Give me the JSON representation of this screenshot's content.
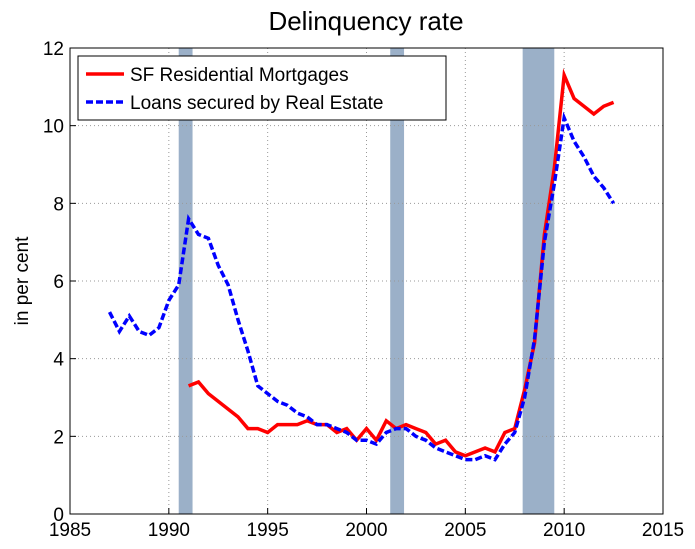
{
  "chart_data": {
    "type": "line",
    "title": "Delinquency rate",
    "y_label": "in per cent",
    "xlim": [
      1985,
      2015
    ],
    "xticks": [
      1985,
      1990,
      1995,
      2000,
      2005,
      2010,
      2015
    ],
    "ylim": [
      0,
      12
    ],
    "yticks": [
      0,
      2,
      4,
      6,
      8,
      10,
      12
    ],
    "grid": true,
    "legend": "upper left",
    "recession_color": "#9bb0c8",
    "recessions": [
      [
        1990.5,
        1991.2
      ],
      [
        2001.2,
        2001.9
      ],
      [
        2007.9,
        2009.5
      ]
    ],
    "series": [
      {
        "name": "SF Residential Mortgages",
        "color": "#ff0000",
        "style": "solid",
        "x": [
          1991,
          1991.5,
          1992,
          1992.5,
          1993,
          1993.5,
          1994,
          1994.5,
          1995,
          1995.5,
          1996,
          1996.5,
          1997,
          1997.5,
          1998,
          1998.5,
          1999,
          1999.5,
          2000,
          2000.5,
          2001,
          2001.5,
          2002,
          2002.5,
          2003,
          2003.5,
          2004,
          2004.5,
          2005,
          2005.5,
          2006,
          2006.5,
          2007,
          2007.5,
          2008,
          2008.5,
          2009,
          2009.5,
          2010,
          2010.5,
          2011,
          2011.5,
          2012,
          2012.5
        ],
        "values": [
          3.3,
          3.4,
          3.1,
          2.9,
          2.7,
          2.5,
          2.2,
          2.2,
          2.1,
          2.3,
          2.3,
          2.3,
          2.4,
          2.3,
          2.3,
          2.1,
          2.2,
          1.9,
          2.2,
          1.9,
          2.4,
          2.2,
          2.3,
          2.2,
          2.1,
          1.8,
          1.9,
          1.6,
          1.5,
          1.6,
          1.7,
          1.6,
          2.1,
          2.2,
          3.2,
          4.4,
          7.2,
          8.9,
          11.3,
          10.7,
          10.5,
          10.3,
          10.5,
          10.6
        ]
      },
      {
        "name": "Loans secured by Real Estate",
        "color": "#0000ff",
        "style": "dashed",
        "x": [
          1987,
          1987.5,
          1988,
          1988.5,
          1989,
          1989.5,
          1990,
          1990.5,
          1991,
          1991.5,
          1992,
          1992.5,
          1993,
          1993.5,
          1994,
          1994.5,
          1995,
          1995.5,
          1996,
          1996.5,
          1997,
          1997.5,
          1998,
          1998.5,
          1999,
          1999.5,
          2000,
          2000.5,
          2001,
          2001.5,
          2002,
          2002.5,
          2003,
          2003.5,
          2004,
          2004.5,
          2005,
          2005.5,
          2006,
          2006.5,
          2007,
          2007.5,
          2008,
          2008.5,
          2009,
          2009.5,
          2010,
          2010.5,
          2011,
          2011.5,
          2012,
          2012.5
        ],
        "values": [
          5.2,
          4.7,
          5.1,
          4.7,
          4.6,
          4.8,
          5.5,
          5.9,
          7.6,
          7.2,
          7.1,
          6.4,
          5.9,
          5.0,
          4.2,
          3.3,
          3.1,
          2.9,
          2.8,
          2.6,
          2.5,
          2.3,
          2.3,
          2.2,
          2.1,
          1.9,
          1.9,
          1.8,
          2.1,
          2.2,
          2.2,
          2.0,
          1.9,
          1.7,
          1.6,
          1.5,
          1.4,
          1.4,
          1.5,
          1.4,
          1.8,
          2.1,
          3.0,
          4.5,
          7.0,
          8.5,
          10.2,
          9.6,
          9.2,
          8.7,
          8.4,
          8.0
        ]
      }
    ]
  }
}
